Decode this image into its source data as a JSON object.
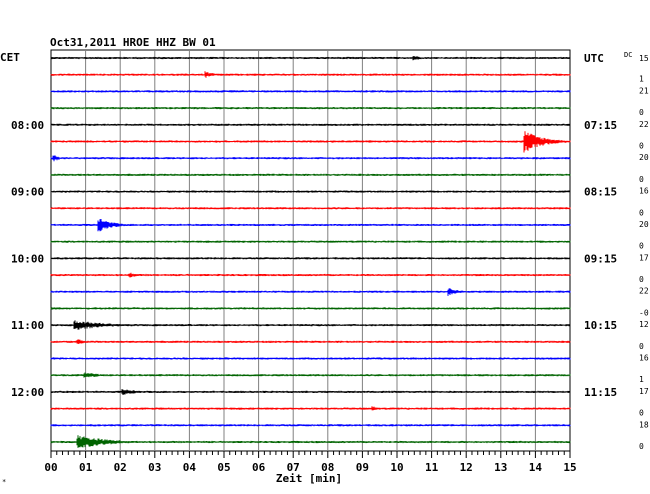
{
  "chart_data": {
    "type": "line",
    "title": "Oct31,2011   HROE HHZ BW 01",
    "left_axis_label": "CET",
    "right_axis_label": "UTC",
    "dc_label": "DC",
    "xlabel": "Zeit [min]",
    "xlim": [
      0,
      15
    ],
    "x_ticks": [
      "00",
      "01",
      "02",
      "03",
      "04",
      "05",
      "06",
      "07",
      "08",
      "09",
      "10",
      "11",
      "12",
      "13",
      "14",
      "15"
    ],
    "trace_colors": [
      "#000000",
      "#ff0000",
      "#0000ff",
      "#006400"
    ],
    "left_time_labels": [
      {
        "row": 4,
        "label": "08:00"
      },
      {
        "row": 8,
        "label": "09:00"
      },
      {
        "row": 12,
        "label": "10:00"
      },
      {
        "row": 16,
        "label": "11:00"
      },
      {
        "row": 20,
        "label": "12:00"
      }
    ],
    "right_time_labels": [
      {
        "row": 0,
        "label": "UTC"
      },
      {
        "row": 4,
        "label": "07:15"
      },
      {
        "row": 8,
        "label": "08:15"
      },
      {
        "row": 12,
        "label": "09:15"
      },
      {
        "row": 16,
        "label": "10:15"
      },
      {
        "row": 20,
        "label": "11:15"
      }
    ],
    "dc_offsets": [
      "15",
      "1",
      "21",
      "0",
      "22",
      "0",
      "20",
      "0",
      "16",
      "0",
      "20",
      "0",
      "17",
      "0",
      "22",
      "-0",
      "12",
      "0",
      "16",
      "1",
      "17",
      "0",
      "18",
      "0"
    ],
    "events": [
      {
        "row": 0,
        "minute": 10.5,
        "amplitude": 2.5,
        "duration": 0.8
      },
      {
        "row": 1,
        "minute": 4.5,
        "amplitude": 3,
        "duration": 0.8
      },
      {
        "row": 5,
        "minute": 13.7,
        "amplitude": 11,
        "duration": 1.6
      },
      {
        "row": 6,
        "minute": 0.1,
        "amplitude": 3,
        "duration": 0.6
      },
      {
        "row": 10,
        "minute": 1.4,
        "amplitude": 7,
        "duration": 1.2
      },
      {
        "row": 13,
        "minute": 2.3,
        "amplitude": 2.5,
        "duration": 0.8
      },
      {
        "row": 14,
        "minute": 11.5,
        "amplitude": 4,
        "duration": 1.0
      },
      {
        "row": 16,
        "minute": 0.7,
        "amplitude": 5,
        "duration": 2.8
      },
      {
        "row": 17,
        "minute": 0.8,
        "amplitude": 2.5,
        "duration": 0.8
      },
      {
        "row": 19,
        "minute": 1.0,
        "amplitude": 3,
        "duration": 1.5
      },
      {
        "row": 20,
        "minute": 2.1,
        "amplitude": 3,
        "duration": 1.5
      },
      {
        "row": 21,
        "minute": 9.3,
        "amplitude": 2.5,
        "duration": 0.6
      },
      {
        "row": 23,
        "minute": 0.8,
        "amplitude": 7,
        "duration": 2.5
      }
    ]
  }
}
